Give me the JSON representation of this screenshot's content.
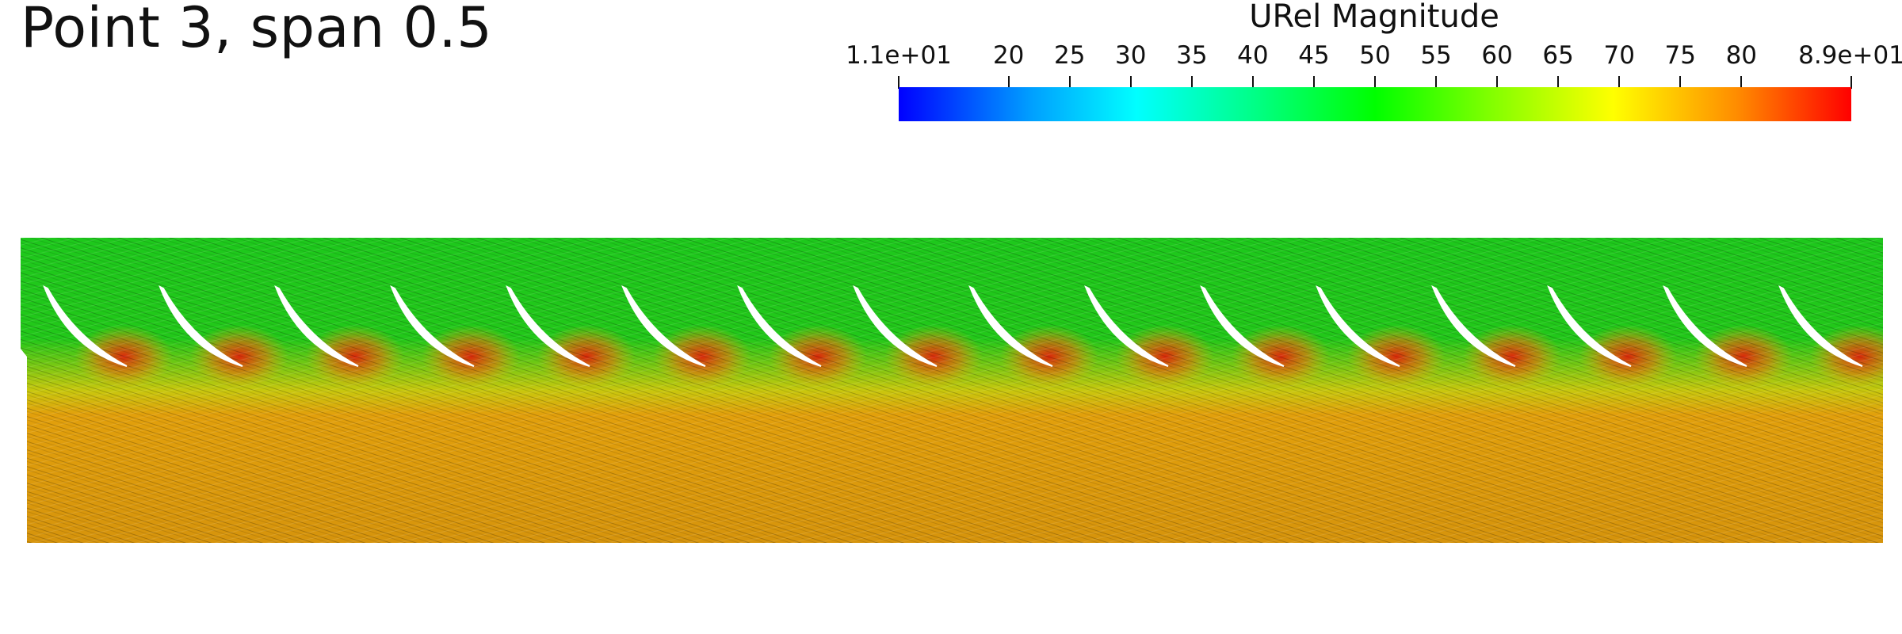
{
  "title": "Point 3, span 0.5",
  "legend": {
    "title": "URel Magnitude",
    "min_label": "1.1e+01",
    "max_label": "8.9e+01",
    "min": 11,
    "max": 89,
    "tick_values": [
      11,
      20,
      25,
      30,
      35,
      40,
      45,
      50,
      55,
      60,
      65,
      70,
      75,
      80,
      89
    ],
    "tick_labels": [
      "1.1e+01",
      "20",
      "25",
      "30",
      "35",
      "40",
      "45",
      "50",
      "55",
      "60",
      "65",
      "70",
      "75",
      "80",
      "8.9e+01"
    ],
    "colormap": [
      "#0000ff",
      "#00a0ff",
      "#00ffff",
      "#00ff80",
      "#00ff00",
      "#80ff00",
      "#ffff00",
      "#ff8c00",
      "#ff0000"
    ]
  },
  "field": {
    "blade_count": 16,
    "upper_color": "#1fc81a",
    "lower_color": "#d9960c",
    "hot_color": "#d92a0a"
  }
}
